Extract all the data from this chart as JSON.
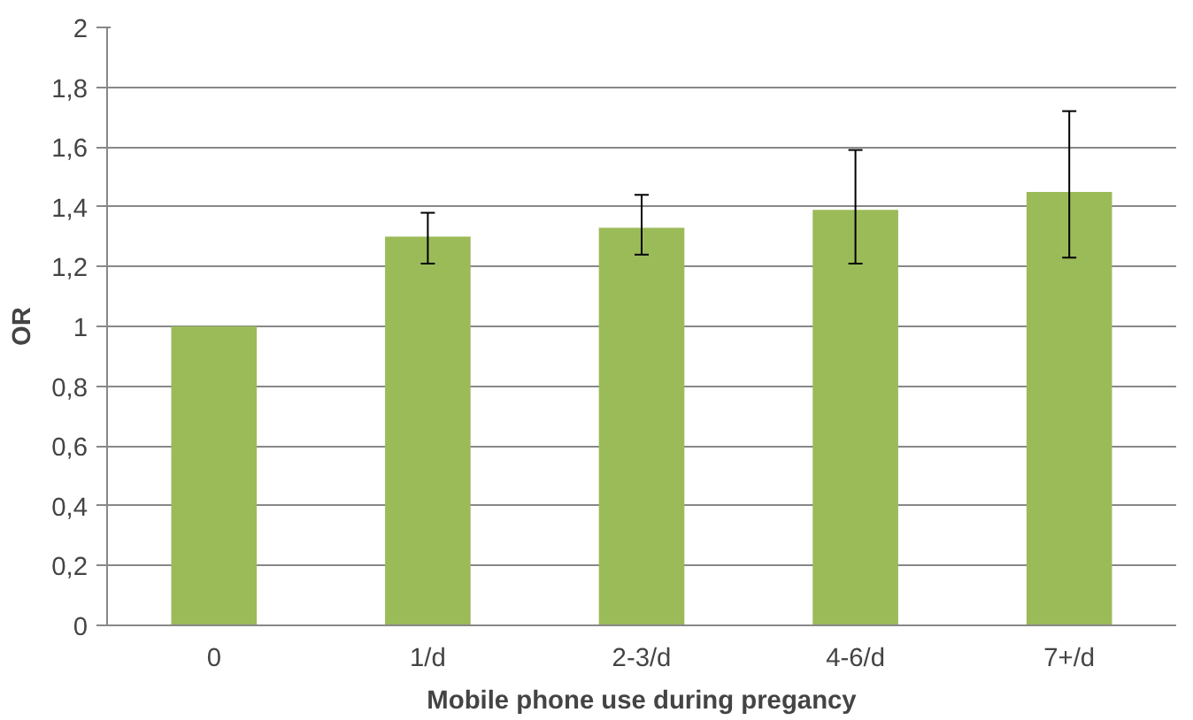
{
  "chart_data": {
    "type": "bar",
    "xlabel": "Mobile phone use during pregancy",
    "ylabel": "OR",
    "categories": [
      "0",
      "1/d",
      "2-3/d",
      "4-6/d",
      "7+/d"
    ],
    "values": [
      1.0,
      1.3,
      1.33,
      1.39,
      1.45
    ],
    "errors": [
      null,
      [
        1.21,
        1.38
      ],
      [
        1.24,
        1.44
      ],
      [
        1.21,
        1.59
      ],
      [
        1.23,
        1.72
      ]
    ],
    "color": "#9bbb59",
    "ylim": [
      0,
      2
    ],
    "yticks": [
      0,
      {
        "value": 0.2,
        "label": "0,2"
      },
      {
        "value": 0.4,
        "label": "0,4"
      },
      {
        "value": 0.6,
        "label": "0,6"
      },
      {
        "value": 0.8,
        "label": "0,8"
      },
      1,
      {
        "value": 1.2,
        "label": "1,2"
      },
      {
        "value": 1.4,
        "label": "1,4"
      },
      {
        "value": 1.6,
        "label": "1,6"
      },
      {
        "value": 1.8,
        "label": "1,8"
      },
      2
    ],
    "grid": "y"
  }
}
